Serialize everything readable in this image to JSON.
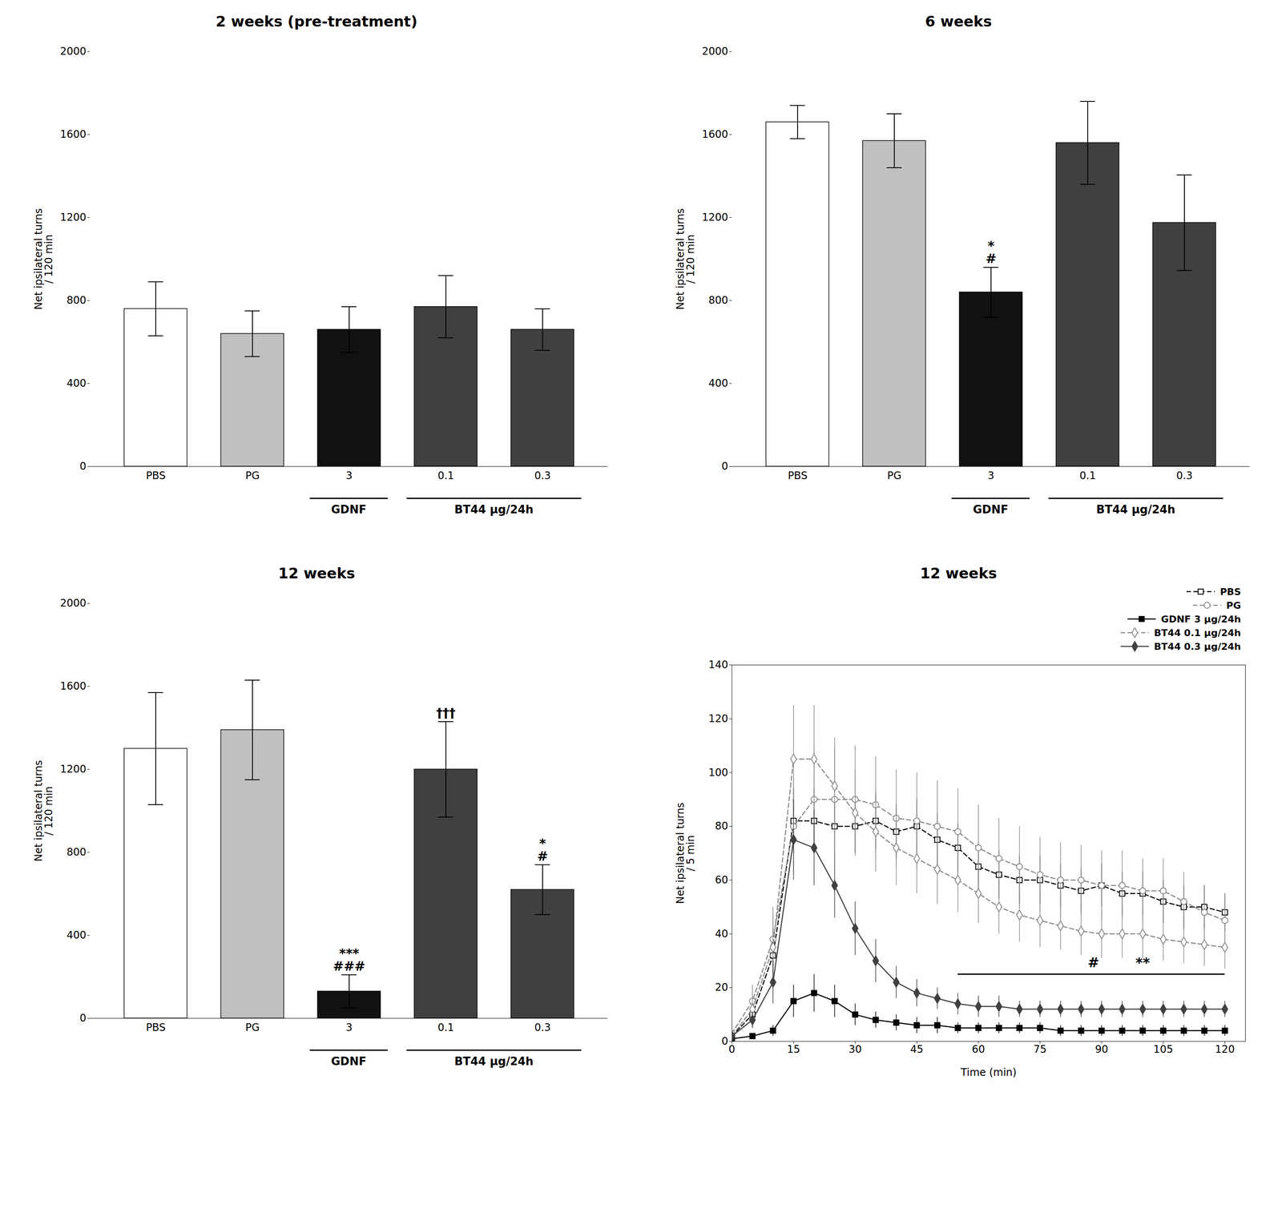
{
  "chart_data": [
    {
      "type": "bar",
      "title": "2 weeks (pre-treatment)",
      "categories": [
        "PBS",
        "PG",
        "3",
        "0.1",
        "0.3"
      ],
      "values": [
        760,
        640,
        660,
        770,
        660
      ],
      "errors": [
        130,
        110,
        110,
        150,
        100
      ],
      "colors": [
        "#ffffff",
        "#c0c0c0",
        "#111111",
        "#404040",
        "#404040"
      ],
      "ylabel": "Net ipsilateral turns\n/ 120 min",
      "ylim": [
        0,
        2000
      ],
      "yticks": [
        0,
        400,
        800,
        1200,
        1600,
        2000
      ],
      "groups": [
        {
          "label": "GDNF",
          "categories": [
            "3"
          ]
        },
        {
          "label": "BT44 μg/24h",
          "categories": [
            "0.1",
            "0.3"
          ]
        }
      ],
      "annotations": []
    },
    {
      "type": "bar",
      "title": "6 weeks",
      "categories": [
        "PBS",
        "PG",
        "3",
        "0.1",
        "0.3"
      ],
      "values": [
        1660,
        1570,
        840,
        1560,
        1175
      ],
      "errors": [
        80,
        130,
        120,
        200,
        230
      ],
      "colors": [
        "#ffffff",
        "#c0c0c0",
        "#111111",
        "#404040",
        "#404040"
      ],
      "ylabel": "Net ipsilateral turns\n/ 120 min",
      "ylim": [
        0,
        2000
      ],
      "yticks": [
        0,
        400,
        800,
        1200,
        1600,
        2000
      ],
      "groups": [
        {
          "label": "GDNF",
          "categories": [
            "3"
          ]
        },
        {
          "label": "BT44 μg/24h",
          "categories": [
            "0.1",
            "0.3"
          ]
        }
      ],
      "annotations": [
        {
          "category": "3",
          "text": "*\n#"
        }
      ]
    },
    {
      "type": "bar",
      "title": "12 weeks",
      "categories": [
        "PBS",
        "PG",
        "3",
        "0.1",
        "0.3"
      ],
      "values": [
        1300,
        1390,
        130,
        1200,
        620
      ],
      "errors": [
        270,
        240,
        80,
        230,
        120
      ],
      "colors": [
        "#ffffff",
        "#c0c0c0",
        "#111111",
        "#404040",
        "#404040"
      ],
      "ylabel": "Net ipsilateral turns\n/ 120 min",
      "ylim": [
        0,
        2000
      ],
      "yticks": [
        0,
        400,
        800,
        1200,
        1600,
        2000
      ],
      "groups": [
        {
          "label": "GDNF",
          "categories": [
            "3"
          ]
        },
        {
          "label": "BT44 μg/24h",
          "categories": [
            "0.1",
            "0.3"
          ]
        }
      ],
      "annotations": [
        {
          "category": "3",
          "text": "***\n###"
        },
        {
          "category": "0.1",
          "text": "†††"
        },
        {
          "category": "0.3",
          "text": "*\n#"
        }
      ]
    },
    {
      "type": "line",
      "title": "12 weeks",
      "xlabel": "Time (min)",
      "ylabel": "Net ipsilateral turns\n/ 5 min",
      "xlim": [
        0,
        125
      ],
      "ylim": [
        0,
        140
      ],
      "xticks": [
        0,
        15,
        30,
        45,
        60,
        75,
        90,
        105,
        120
      ],
      "yticks": [
        0,
        20,
        40,
        60,
        80,
        100,
        120,
        140
      ],
      "legend": "upper right",
      "x": [
        0,
        5,
        10,
        15,
        20,
        25,
        30,
        35,
        40,
        45,
        50,
        55,
        60,
        65,
        70,
        75,
        80,
        85,
        90,
        95,
        100,
        105,
        110,
        115,
        120
      ],
      "series": [
        {
          "name": "PBS",
          "color": "#000000",
          "marker": "square-open",
          "line_style": "dashed",
          "values": [
            2,
            10,
            32,
            82,
            82,
            80,
            80,
            82,
            78,
            80,
            75,
            72,
            65,
            62,
            60,
            60,
            58,
            56,
            58,
            55,
            55,
            52,
            50,
            50,
            48
          ],
          "errors": [
            1,
            5,
            10,
            12,
            12,
            10,
            10,
            10,
            10,
            10,
            10,
            9,
            9,
            9,
            9,
            9,
            8,
            8,
            8,
            8,
            8,
            8,
            8,
            8,
            7
          ]
        },
        {
          "name": "PG",
          "color": "#888888",
          "marker": "circle-open",
          "line_style": "dashed",
          "values": [
            3,
            15,
            38,
            80,
            90,
            90,
            90,
            88,
            83,
            82,
            80,
            78,
            72,
            68,
            65,
            62,
            60,
            60,
            58,
            58,
            56,
            56,
            52,
            48,
            45
          ],
          "errors": [
            1,
            6,
            12,
            18,
            20,
            20,
            20,
            18,
            18,
            18,
            17,
            16,
            16,
            15,
            15,
            14,
            14,
            13,
            13,
            13,
            12,
            12,
            11,
            10,
            10
          ]
        },
        {
          "name": "GDNF 3 μg/24h",
          "color": "#000000",
          "marker": "square",
          "line_style": "solid",
          "values": [
            1,
            2,
            4,
            15,
            18,
            15,
            10,
            8,
            7,
            6,
            6,
            5,
            5,
            5,
            5,
            5,
            4,
            4,
            4,
            4,
            4,
            4,
            4,
            4,
            4
          ],
          "errors": [
            0,
            1,
            2,
            6,
            7,
            6,
            4,
            3,
            3,
            3,
            3,
            2,
            2,
            2,
            2,
            2,
            2,
            2,
            2,
            2,
            2,
            2,
            2,
            2,
            2
          ]
        },
        {
          "name": "BT44 0.1 μg/24h",
          "color": "#888888",
          "marker": "diamond-open",
          "line_style": "dashed",
          "values": [
            2,
            12,
            35,
            105,
            105,
            95,
            85,
            78,
            72,
            68,
            64,
            60,
            55,
            50,
            47,
            45,
            43,
            41,
            40,
            40,
            40,
            38,
            37,
            36,
            35
          ],
          "errors": [
            1,
            5,
            12,
            20,
            20,
            18,
            16,
            15,
            14,
            13,
            13,
            12,
            11,
            10,
            10,
            10,
            9,
            9,
            9,
            9,
            9,
            8,
            8,
            8,
            8
          ]
        },
        {
          "name": "BT44 0.3 μg/24h",
          "color": "#404040",
          "marker": "diamond",
          "line_style": "solid",
          "values": [
            2,
            8,
            22,
            75,
            72,
            58,
            42,
            30,
            22,
            18,
            16,
            14,
            13,
            13,
            12,
            12,
            12,
            12,
            12,
            12,
            12,
            12,
            12,
            12,
            12
          ],
          "errors": [
            1,
            3,
            8,
            15,
            14,
            12,
            10,
            8,
            6,
            5,
            4,
            4,
            4,
            4,
            3,
            3,
            3,
            3,
            3,
            3,
            3,
            3,
            3,
            3,
            3
          ]
        }
      ],
      "significance": {
        "x": [
          55,
          120
        ],
        "y": 25,
        "marks": [
          {
            "x": 88,
            "y": 27,
            "text": "#"
          },
          {
            "x": 100,
            "y": 27,
            "text": "**"
          }
        ]
      }
    }
  ]
}
